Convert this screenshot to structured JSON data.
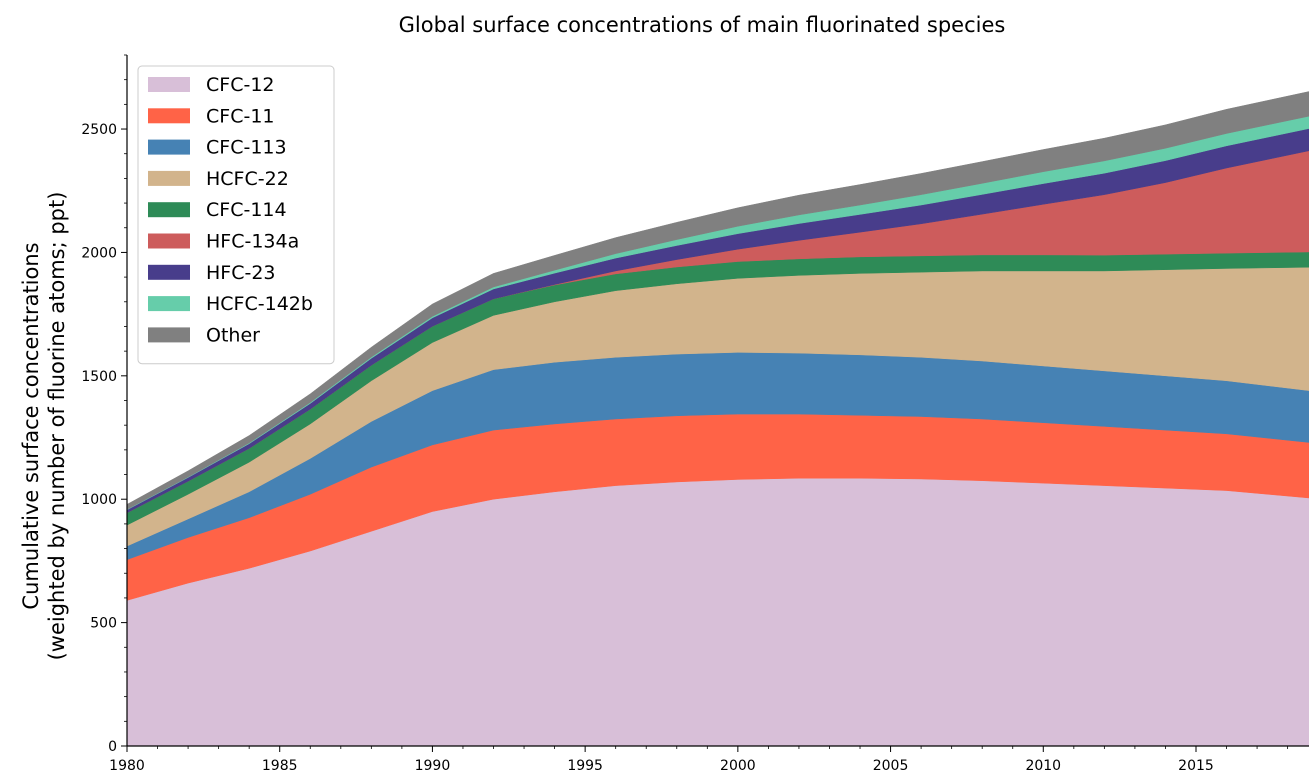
{
  "chart_data": {
    "type": "area",
    "title": "Global surface concentrations of main fluorinated species",
    "ylabel_line1": "Cumulative surface concentrations",
    "ylabel_line2": "(weighted by number of fluorine atoms; ppt)",
    "xlim": [
      1980,
      2018.7
    ],
    "ylim": [
      0,
      2800
    ],
    "x_ticks": [
      1980,
      1985,
      1990,
      1995,
      2000,
      2005,
      2010,
      2015
    ],
    "y_ticks": [
      0,
      500,
      1000,
      1500,
      2000,
      2500
    ],
    "legend_position": "top-left",
    "x": [
      1980,
      1982,
      1984,
      1986,
      1988,
      1990,
      1992,
      1994,
      1996,
      1998,
      2000,
      2002,
      2004,
      2006,
      2008,
      2010,
      2012,
      2014,
      2016,
      2018.7
    ],
    "series": [
      {
        "name": "CFC-12",
        "color": "#d8bfd8",
        "values": [
          590,
          660,
          720,
          790,
          870,
          950,
          1000,
          1030,
          1055,
          1070,
          1080,
          1085,
          1085,
          1082,
          1075,
          1065,
          1055,
          1045,
          1035,
          1005
        ]
      },
      {
        "name": "CFC-11",
        "color": "#ff6347",
        "values": [
          165,
          185,
          205,
          230,
          260,
          270,
          280,
          275,
          270,
          268,
          265,
          260,
          255,
          253,
          250,
          245,
          240,
          235,
          230,
          225
        ]
      },
      {
        "name": "CFC-113",
        "color": "#4682b4",
        "values": [
          55,
          75,
          105,
          145,
          185,
          220,
          245,
          250,
          250,
          250,
          250,
          247,
          245,
          240,
          235,
          230,
          225,
          220,
          215,
          210
        ]
      },
      {
        "name": "HCFC-22",
        "color": "#d2b48c",
        "values": [
          85,
          100,
          120,
          140,
          165,
          195,
          220,
          245,
          270,
          285,
          300,
          315,
          330,
          345,
          365,
          385,
          405,
          430,
          455,
          500
        ]
      },
      {
        "name": "CFC-114",
        "color": "#2e8b57",
        "values": [
          50,
          53,
          56,
          60,
          63,
          66,
          67,
          68,
          68,
          68,
          68,
          67,
          67,
          66,
          65,
          65,
          64,
          63,
          62,
          62
        ]
      },
      {
        "name": "HFC-134a",
        "color": "#cd5c5c",
        "values": [
          0,
          0,
          0,
          0,
          0,
          0,
          0,
          2,
          12,
          30,
          50,
          75,
          100,
          130,
          165,
          205,
          245,
          290,
          345,
          410
        ]
      },
      {
        "name": "HFC-23",
        "color": "#483d8b",
        "values": [
          12,
          15,
          19,
          23,
          28,
          34,
          40,
          46,
          52,
          57,
          63,
          68,
          72,
          76,
          80,
          84,
          87,
          89,
          90,
          90
        ]
      },
      {
        "name": "HCFC-142b",
        "color": "#66cdaa",
        "values": [
          2,
          2,
          3,
          4,
          5,
          6,
          8,
          12,
          18,
          24,
          30,
          35,
          38,
          42,
          45,
          48,
          50,
          50,
          50,
          50
        ]
      },
      {
        "name": "Other",
        "color": "#808080",
        "values": [
          20,
          25,
          30,
          35,
          40,
          50,
          55,
          60,
          65,
          70,
          75,
          80,
          83,
          86,
          88,
          90,
          92,
          95,
          98,
          100
        ]
      }
    ]
  }
}
